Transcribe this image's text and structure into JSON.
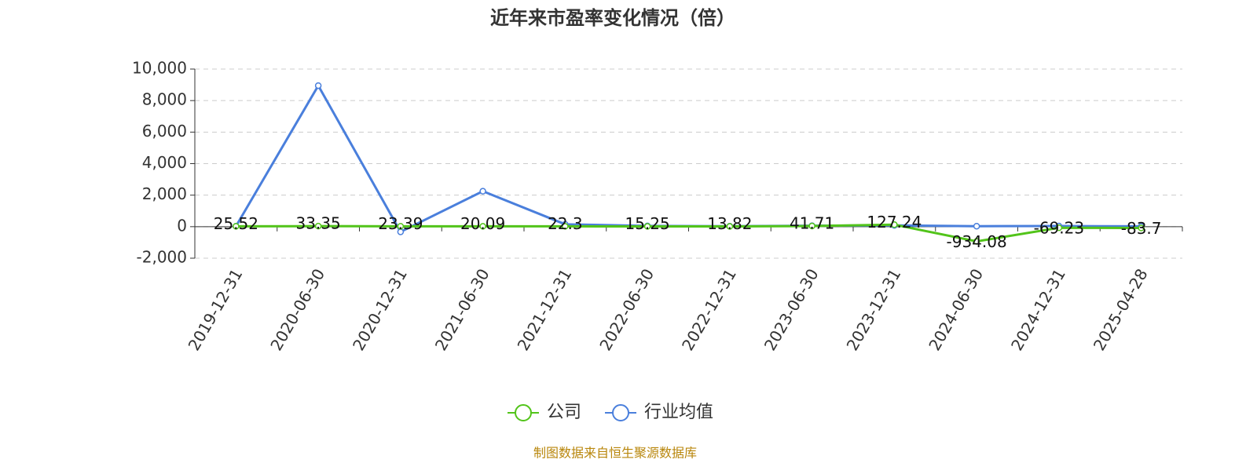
{
  "chart_data": {
    "type": "line",
    "title": "近年来市盈率变化情况（倍）",
    "categories": [
      "2019-12-31",
      "2020-06-30",
      "2020-12-31",
      "2021-06-30",
      "2021-12-31",
      "2022-06-30",
      "2022-12-31",
      "2023-06-30",
      "2023-12-31",
      "2024-06-30",
      "2024-12-31",
      "2025-04-28"
    ],
    "series": [
      {
        "name": "公司",
        "color": "#52c41a",
        "values": [
          25.52,
          33.35,
          23.39,
          20.09,
          22.3,
          15.25,
          13.82,
          41.71,
          127.24,
          -934.08,
          -69.23,
          -83.7
        ]
      },
      {
        "name": "行业均值",
        "color": "#4a7fdc",
        "values": [
          30,
          8950,
          -330,
          2250,
          150,
          50,
          30,
          60,
          80,
          30,
          40,
          20
        ]
      }
    ],
    "ylim": [
      -2000,
      10000
    ],
    "yticks": [
      {
        "value": -2000,
        "label": "-2,000"
      },
      0,
      {
        "value": 2000,
        "label": "2,000"
      },
      {
        "value": 4000,
        "label": "4,000"
      },
      {
        "value": 6000,
        "label": "6,000"
      },
      {
        "value": 8000,
        "label": "8,000"
      },
      {
        "value": 10000,
        "label": "10,000"
      }
    ],
    "grid": true,
    "source": "制图数据来自恒生聚源数据库"
  }
}
